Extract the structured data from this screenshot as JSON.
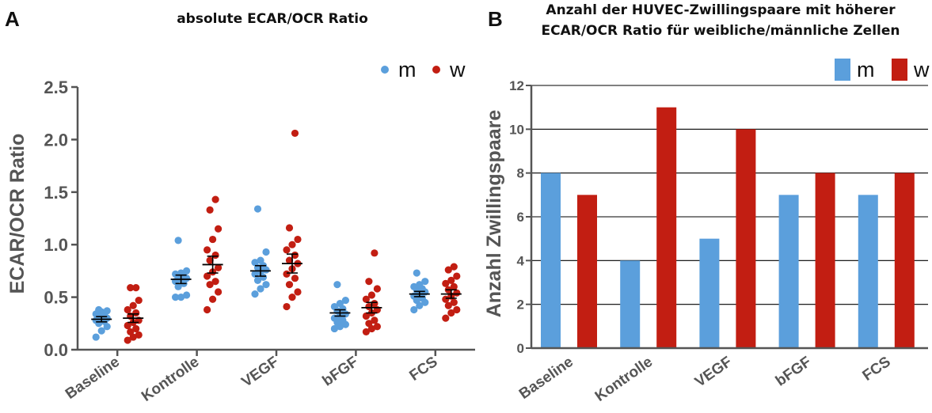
{
  "colors": {
    "m": "#5b9fdc",
    "w": "#c21e12",
    "axis": "#555555",
    "err": "#000000"
  },
  "chart_data": [
    {
      "panel_label": "A",
      "type": "scatter",
      "title": "absolute ECAR/OCR Ratio",
      "ylabel": "ECAR/OCR Ratio",
      "ylim": [
        0,
        2.5
      ],
      "yticks": [
        "0.0",
        "0.5",
        "1.0",
        "1.5",
        "2.0",
        "2.5"
      ],
      "categories": [
        "Baseline",
        "Kontrolle",
        "VEGF",
        "bFGF",
        "FCS"
      ],
      "legend": {
        "position": "top-right",
        "entries": [
          "m",
          "w"
        ]
      },
      "series": [
        {
          "name": "m",
          "color": "#5b9fdc",
          "points": [
            [
              0.12,
              0.18,
              0.22,
              0.25,
              0.27,
              0.28,
              0.29,
              0.3,
              0.31,
              0.33,
              0.34,
              0.36,
              0.37,
              0.38
            ],
            [
              0.5,
              0.5,
              0.52,
              0.6,
              0.63,
              0.65,
              0.67,
              0.68,
              0.69,
              0.7,
              0.72,
              0.73,
              0.75,
              1.04
            ],
            [
              0.53,
              0.58,
              0.62,
              0.66,
              0.69,
              0.72,
              0.74,
              0.76,
              0.78,
              0.8,
              0.83,
              0.85,
              0.93,
              1.34
            ],
            [
              0.2,
              0.22,
              0.24,
              0.26,
              0.28,
              0.3,
              0.32,
              0.34,
              0.37,
              0.39,
              0.41,
              0.44,
              0.47,
              0.62
            ],
            [
              0.38,
              0.42,
              0.45,
              0.47,
              0.49,
              0.51,
              0.53,
              0.55,
              0.57,
              0.58,
              0.6,
              0.62,
              0.65,
              0.73
            ]
          ],
          "mean": [
            0.29,
            0.67,
            0.75,
            0.35,
            0.53
          ],
          "sem": [
            0.025,
            0.04,
            0.05,
            0.03,
            0.025
          ]
        },
        {
          "name": "w",
          "color": "#c21e12",
          "points": [
            [
              0.09,
              0.12,
              0.14,
              0.17,
              0.2,
              0.23,
              0.26,
              0.28,
              0.32,
              0.35,
              0.38,
              0.42,
              0.47,
              0.59,
              0.59
            ],
            [
              0.38,
              0.48,
              0.55,
              0.62,
              0.65,
              0.7,
              0.74,
              0.78,
              0.85,
              0.9,
              0.95,
              1.05,
              1.15,
              1.33,
              1.43
            ],
            [
              0.41,
              0.5,
              0.55,
              0.62,
              0.68,
              0.72,
              0.77,
              0.82,
              0.85,
              0.9,
              0.95,
              1.0,
              1.05,
              1.16,
              2.06
            ],
            [
              0.17,
              0.2,
              0.22,
              0.25,
              0.28,
              0.32,
              0.35,
              0.38,
              0.41,
              0.44,
              0.48,
              0.52,
              0.58,
              0.65,
              0.92
            ],
            [
              0.3,
              0.35,
              0.38,
              0.42,
              0.45,
              0.48,
              0.51,
              0.54,
              0.57,
              0.6,
              0.63,
              0.66,
              0.7,
              0.76,
              0.79
            ]
          ],
          "mean": [
            0.3,
            0.81,
            0.82,
            0.4,
            0.53
          ],
          "sem": [
            0.04,
            0.08,
            0.09,
            0.05,
            0.04
          ]
        }
      ]
    },
    {
      "panel_label": "B",
      "type": "bar",
      "title_lines": [
        "Anzahl der HUVEC-Zwillingspaare mit höherer",
        "ECAR/OCR Ratio für weibliche/männliche Zellen"
      ],
      "ylabel": "Anzahl Zwillingspaare",
      "ylim": [
        0,
        12
      ],
      "yticks": [
        "0",
        "2",
        "4",
        "6",
        "8",
        "10",
        "12"
      ],
      "grid": true,
      "categories": [
        "Baseline",
        "Kontrolle",
        "VEGF",
        "bFGF",
        "FCS"
      ],
      "legend": {
        "position": "top-right",
        "entries": [
          "m",
          "w"
        ]
      },
      "series": [
        {
          "name": "m",
          "color": "#5b9fdc",
          "values": [
            8,
            4,
            5,
            7,
            7
          ]
        },
        {
          "name": "w",
          "color": "#c21e12",
          "values": [
            7,
            11,
            10,
            8,
            8
          ]
        }
      ]
    }
  ]
}
